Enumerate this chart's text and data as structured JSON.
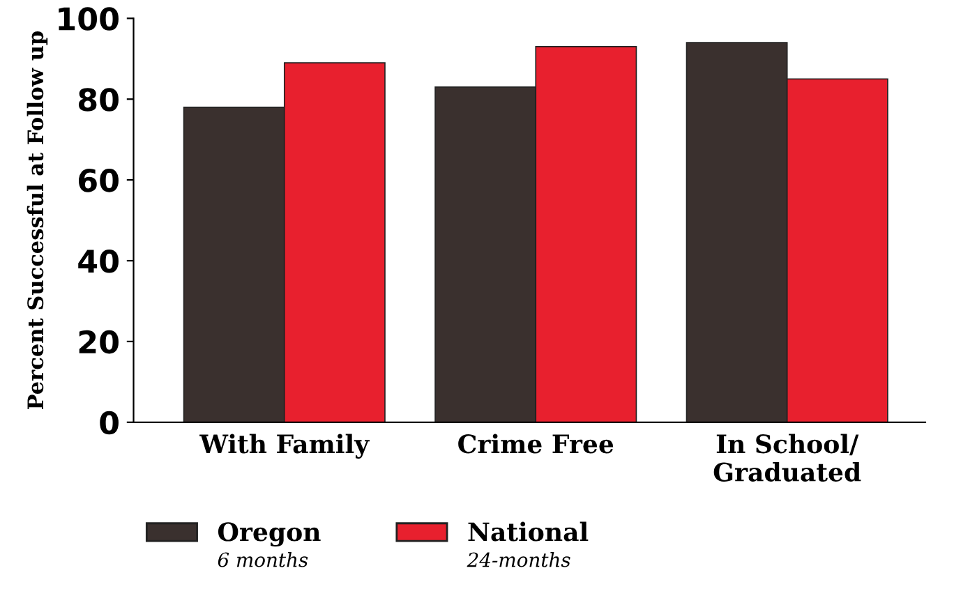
{
  "chart_data": {
    "type": "bar",
    "ylabel": "Percent Successful at Follow up",
    "categories": [
      "With Family",
      "Crime Free",
      "In School/\nGraduated"
    ],
    "series": [
      {
        "name": "Oregon",
        "color": "#3a302e",
        "values": [
          78,
          83,
          94
        ]
      },
      {
        "name": "National",
        "color": "#e8202e",
        "values": [
          89,
          93,
          85
        ]
      }
    ],
    "ylim": [
      0,
      100
    ],
    "yticks": [
      0,
      20,
      40,
      60,
      80,
      100
    ],
    "grid": false,
    "legend": "bottom",
    "annotations": [
      "6 months",
      "24-months"
    ]
  }
}
